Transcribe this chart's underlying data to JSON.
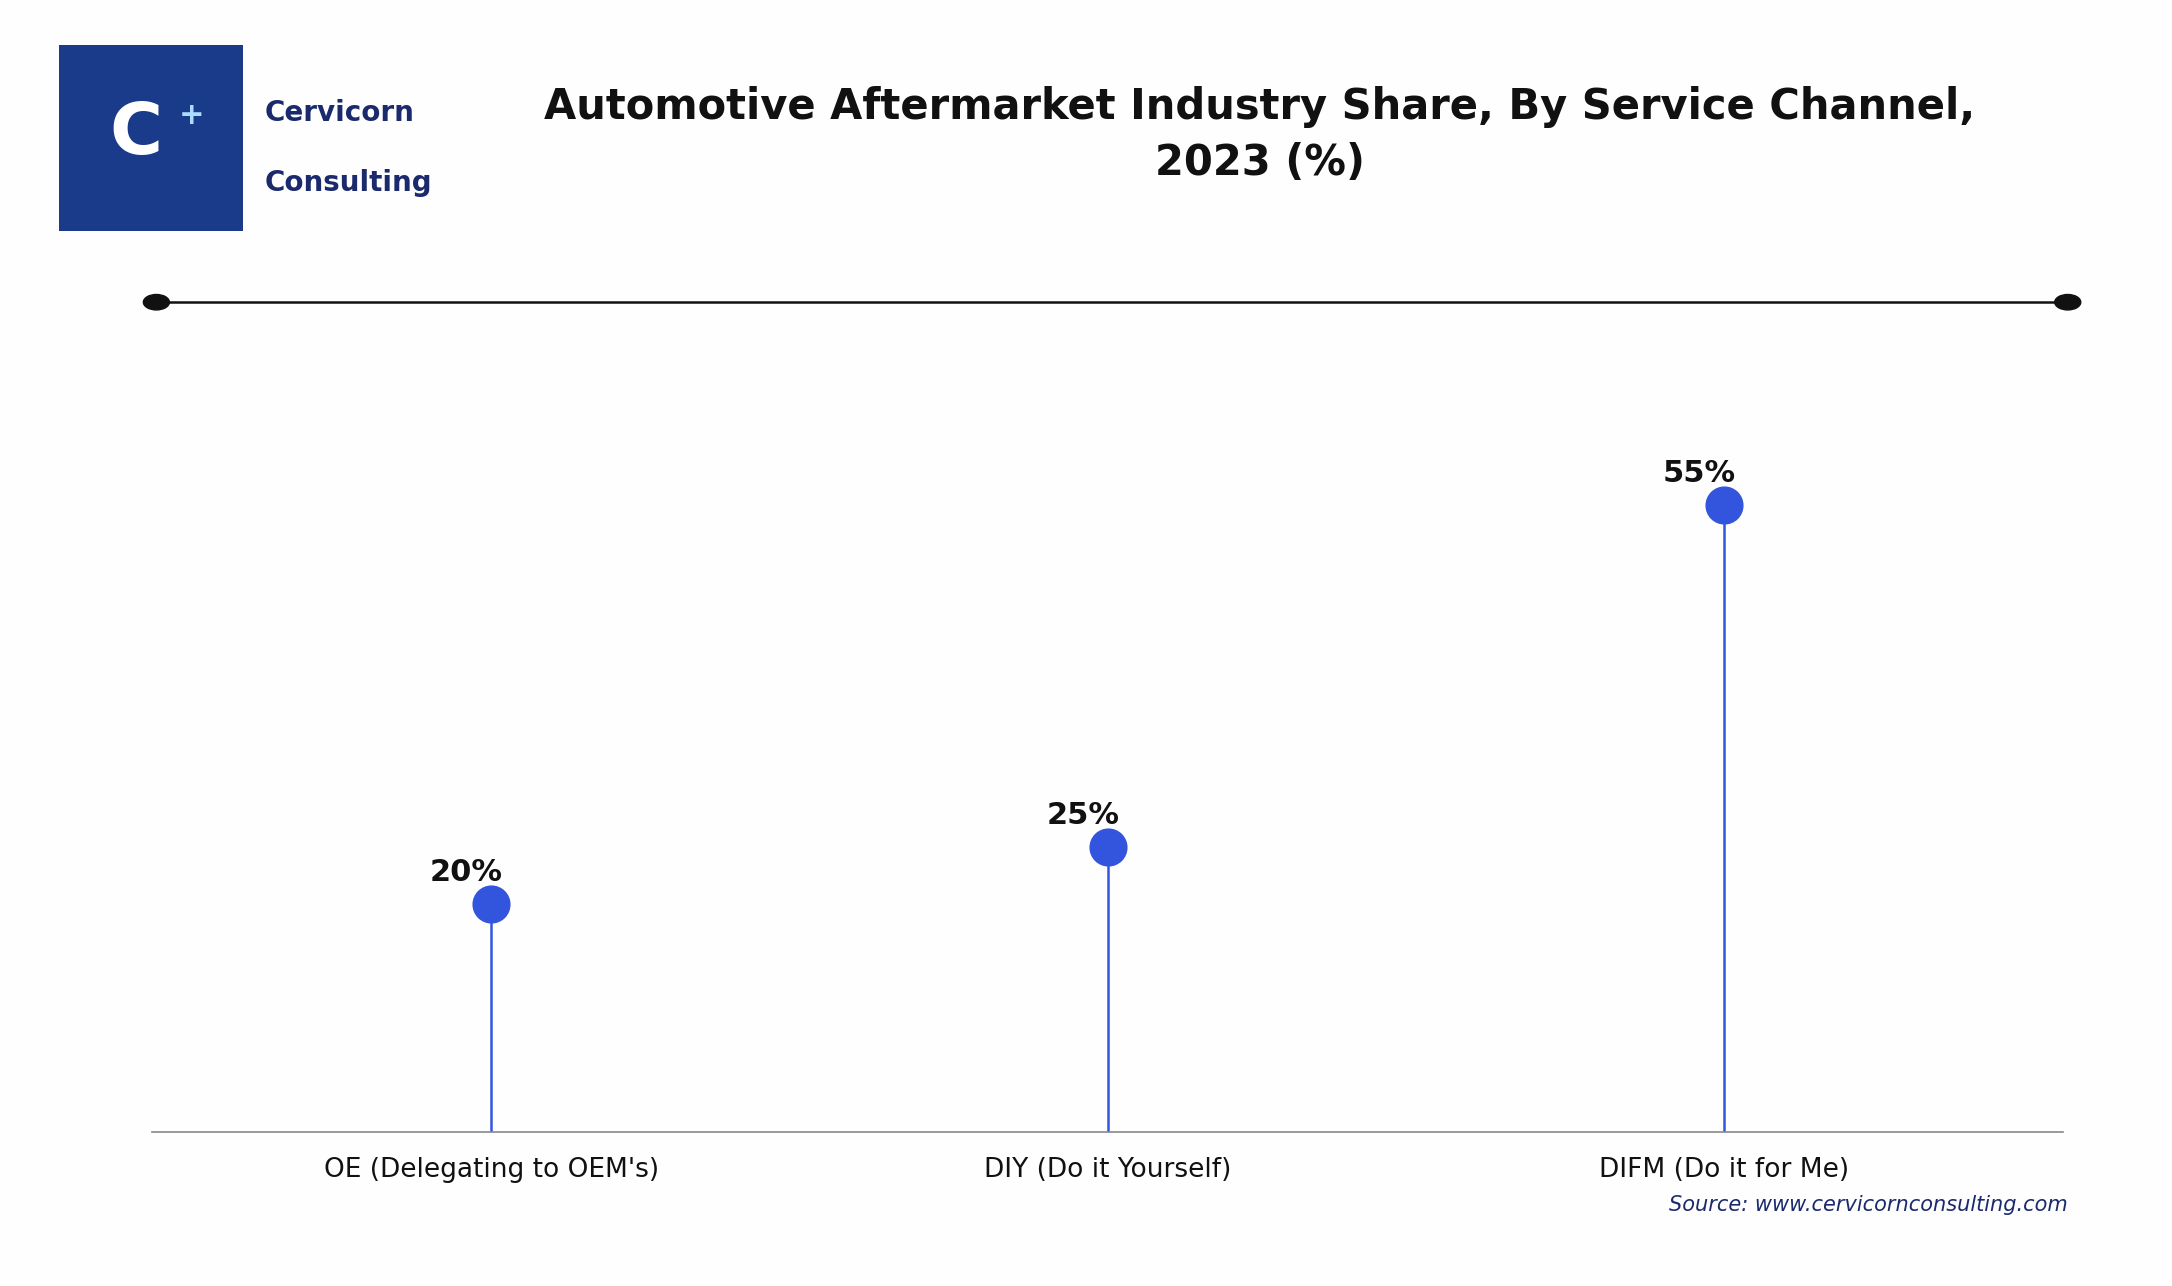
{
  "title": "Automotive Aftermarket Industry Share, By Service Channel,\n2023 (%)",
  "categories": [
    "OE (Delegating to OEM's)",
    "DIY (Do it Yourself)",
    "DIFM (Do it for Me)"
  ],
  "values": [
    20,
    25,
    55
  ],
  "value_labels": [
    "20%",
    "25%",
    "55%"
  ],
  "dot_color": "#3355dd",
  "line_color": "#3355dd",
  "title_fontsize": 30,
  "label_fontsize": 19,
  "value_fontsize": 22,
  "source_text": "Source: www.cervicornconsulting.com",
  "source_fontsize": 15,
  "source_color": "#1a2a6c",
  "bg_color": "#fefefe",
  "grid_color": "#cccccc",
  "title_color": "#111111",
  "xlabel_color": "#111111",
  "top_line_color": "#111111",
  "top_dot_color": "#111111",
  "ylim": [
    0,
    70
  ],
  "logo_box_color": "#1a3a8a",
  "cervicorn_color": "#1a2a6c"
}
